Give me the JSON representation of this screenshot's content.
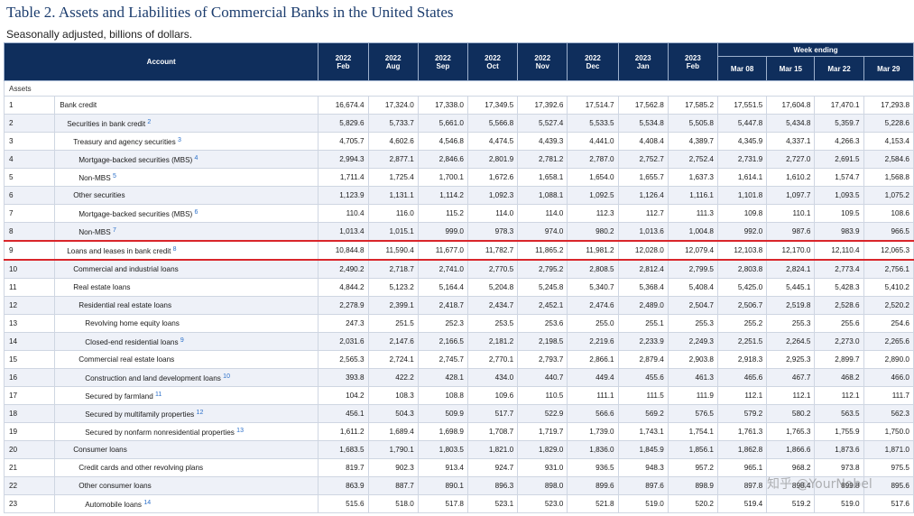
{
  "title": "Table 2. Assets and Liabilities of Commercial Banks in the United States",
  "subtitle": "Seasonally adjusted, billions of dollars.",
  "header": {
    "account": "Account",
    "week_ending": "Week ending",
    "months": [
      {
        "year": "2022",
        "mon": "Feb"
      },
      {
        "year": "2022",
        "mon": "Aug"
      },
      {
        "year": "2022",
        "mon": "Sep"
      },
      {
        "year": "2022",
        "mon": "Oct"
      },
      {
        "year": "2022",
        "mon": "Nov"
      },
      {
        "year": "2022",
        "mon": "Dec"
      },
      {
        "year": "2023",
        "mon": "Jan"
      },
      {
        "year": "2023",
        "mon": "Feb"
      }
    ],
    "weeks": [
      "Mar 08",
      "Mar 15",
      "Mar 22",
      "Mar 29"
    ]
  },
  "section": "Assets",
  "rows": [
    {
      "no": "1",
      "label": "Bank credit",
      "note": "",
      "indent": 0,
      "values": [
        "16,674.4",
        "17,324.0",
        "17,338.0",
        "17,349.5",
        "17,392.6",
        "17,514.7",
        "17,562.8",
        "17,585.2",
        "17,551.5",
        "17,604.8",
        "17,470.1",
        "17,293.8"
      ]
    },
    {
      "no": "2",
      "label": "Securities in bank credit",
      "note": "2",
      "indent": 1,
      "values": [
        "5,829.6",
        "5,733.7",
        "5,661.0",
        "5,566.8",
        "5,527.4",
        "5,533.5",
        "5,534.8",
        "5,505.8",
        "5,447.8",
        "5,434.8",
        "5,359.7",
        "5,228.6"
      ]
    },
    {
      "no": "3",
      "label": "Treasury and agency securities",
      "note": "3",
      "indent": 2,
      "values": [
        "4,705.7",
        "4,602.6",
        "4,546.8",
        "4,474.5",
        "4,439.3",
        "4,441.0",
        "4,408.4",
        "4,389.7",
        "4,345.9",
        "4,337.1",
        "4,266.3",
        "4,153.4"
      ]
    },
    {
      "no": "4",
      "label": "Mortgage-backed securities (MBS)",
      "note": "4",
      "indent": 3,
      "values": [
        "2,994.3",
        "2,877.1",
        "2,846.6",
        "2,801.9",
        "2,781.2",
        "2,787.0",
        "2,752.7",
        "2,752.4",
        "2,731.9",
        "2,727.0",
        "2,691.5",
        "2,584.6"
      ]
    },
    {
      "no": "5",
      "label": "Non-MBS",
      "note": "5",
      "indent": 3,
      "values": [
        "1,711.4",
        "1,725.4",
        "1,700.1",
        "1,672.6",
        "1,658.1",
        "1,654.0",
        "1,655.7",
        "1,637.3",
        "1,614.1",
        "1,610.2",
        "1,574.7",
        "1,568.8"
      ]
    },
    {
      "no": "6",
      "label": "Other securities",
      "note": "",
      "indent": 2,
      "values": [
        "1,123.9",
        "1,131.1",
        "1,114.2",
        "1,092.3",
        "1,088.1",
        "1,092.5",
        "1,126.4",
        "1,116.1",
        "1,101.8",
        "1,097.7",
        "1,093.5",
        "1,075.2"
      ]
    },
    {
      "no": "7",
      "label": "Mortgage-backed securities (MBS)",
      "note": "6",
      "indent": 3,
      "values": [
        "110.4",
        "116.0",
        "115.2",
        "114.0",
        "114.0",
        "112.3",
        "112.7",
        "111.3",
        "109.8",
        "110.1",
        "109.5",
        "108.6"
      ]
    },
    {
      "no": "8",
      "label": "Non-MBS",
      "note": "7",
      "indent": 3,
      "values": [
        "1,013.4",
        "1,015.1",
        "999.0",
        "978.3",
        "974.0",
        "980.2",
        "1,013.6",
        "1,004.8",
        "992.0",
        "987.6",
        "983.9",
        "966.5"
      ]
    },
    {
      "no": "9",
      "label": "Loans and leases in bank credit",
      "note": "8",
      "indent": 1,
      "highlight": true,
      "values": [
        "10,844.8",
        "11,590.4",
        "11,677.0",
        "11,782.7",
        "11,865.2",
        "11,981.2",
        "12,028.0",
        "12,079.4",
        "12,103.8",
        "12,170.0",
        "12,110.4",
        "12,065.3"
      ]
    },
    {
      "no": "10",
      "label": "Commercial and industrial loans",
      "note": "",
      "indent": 2,
      "values": [
        "2,490.2",
        "2,718.7",
        "2,741.0",
        "2,770.5",
        "2,795.2",
        "2,808.5",
        "2,812.4",
        "2,799.5",
        "2,803.8",
        "2,824.1",
        "2,773.4",
        "2,756.1"
      ]
    },
    {
      "no": "11",
      "label": "Real estate loans",
      "note": "",
      "indent": 2,
      "values": [
        "4,844.2",
        "5,123.2",
        "5,164.4",
        "5,204.8",
        "5,245.8",
        "5,340.7",
        "5,368.4",
        "5,408.4",
        "5,425.0",
        "5,445.1",
        "5,428.3",
        "5,410.2"
      ]
    },
    {
      "no": "12",
      "label": "Residential real estate loans",
      "note": "",
      "indent": 3,
      "values": [
        "2,278.9",
        "2,399.1",
        "2,418.7",
        "2,434.7",
        "2,452.1",
        "2,474.6",
        "2,489.0",
        "2,504.7",
        "2,506.7",
        "2,519.8",
        "2,528.6",
        "2,520.2"
      ]
    },
    {
      "no": "13",
      "label": "Revolving home equity loans",
      "note": "",
      "indent": 4,
      "values": [
        "247.3",
        "251.5",
        "252.3",
        "253.5",
        "253.6",
        "255.0",
        "255.1",
        "255.3",
        "255.2",
        "255.3",
        "255.6",
        "254.6"
      ]
    },
    {
      "no": "14",
      "label": "Closed-end residential loans",
      "note": "9",
      "indent": 4,
      "values": [
        "2,031.6",
        "2,147.6",
        "2,166.5",
        "2,181.2",
        "2,198.5",
        "2,219.6",
        "2,233.9",
        "2,249.3",
        "2,251.5",
        "2,264.5",
        "2,273.0",
        "2,265.6"
      ]
    },
    {
      "no": "15",
      "label": "Commercial real estate loans",
      "note": "",
      "indent": 3,
      "values": [
        "2,565.3",
        "2,724.1",
        "2,745.7",
        "2,770.1",
        "2,793.7",
        "2,866.1",
        "2,879.4",
        "2,903.8",
        "2,918.3",
        "2,925.3",
        "2,899.7",
        "2,890.0"
      ]
    },
    {
      "no": "16",
      "label": "Construction and land development loans",
      "note": "10",
      "indent": 4,
      "values": [
        "393.8",
        "422.2",
        "428.1",
        "434.0",
        "440.7",
        "449.4",
        "455.6",
        "461.3",
        "465.6",
        "467.7",
        "468.2",
        "466.0"
      ]
    },
    {
      "no": "17",
      "label": "Secured by farmland",
      "note": "11",
      "indent": 4,
      "values": [
        "104.2",
        "108.3",
        "108.8",
        "109.6",
        "110.5",
        "111.1",
        "111.5",
        "111.9",
        "112.1",
        "112.1",
        "112.1",
        "111.7"
      ]
    },
    {
      "no": "18",
      "label": "Secured by multifamily properties",
      "note": "12",
      "indent": 4,
      "values": [
        "456.1",
        "504.3",
        "509.9",
        "517.7",
        "522.9",
        "566.6",
        "569.2",
        "576.5",
        "579.2",
        "580.2",
        "563.5",
        "562.3"
      ]
    },
    {
      "no": "19",
      "label": "Secured by nonfarm nonresidential properties",
      "note": "13",
      "indent": 4,
      "values": [
        "1,611.2",
        "1,689.4",
        "1,698.9",
        "1,708.7",
        "1,719.7",
        "1,739.0",
        "1,743.1",
        "1,754.1",
        "1,761.3",
        "1,765.3",
        "1,755.9",
        "1,750.0"
      ]
    },
    {
      "no": "20",
      "label": "Consumer loans",
      "note": "",
      "indent": 2,
      "values": [
        "1,683.5",
        "1,790.1",
        "1,803.5",
        "1,821.0",
        "1,829.0",
        "1,836.0",
        "1,845.9",
        "1,856.1",
        "1,862.8",
        "1,866.6",
        "1,873.6",
        "1,871.0"
      ]
    },
    {
      "no": "21",
      "label": "Credit cards and other revolving plans",
      "note": "",
      "indent": 3,
      "values": [
        "819.7",
        "902.3",
        "913.4",
        "924.7",
        "931.0",
        "936.5",
        "948.3",
        "957.2",
        "965.1",
        "968.2",
        "973.8",
        "975.5"
      ]
    },
    {
      "no": "22",
      "label": "Other consumer loans",
      "note": "",
      "indent": 3,
      "values": [
        "863.9",
        "887.7",
        "890.1",
        "896.3",
        "898.0",
        "899.6",
        "897.6",
        "898.9",
        "897.8",
        "898.4",
        "899.8",
        "895.6"
      ]
    },
    {
      "no": "23",
      "label": "Automobile loans",
      "note": "14",
      "indent": 4,
      "values": [
        "515.6",
        "518.0",
        "517.8",
        "523.1",
        "523.0",
        "521.8",
        "519.0",
        "520.2",
        "519.4",
        "519.2",
        "519.0",
        "517.6"
      ]
    }
  ],
  "watermark": "知乎 @YourNobel"
}
